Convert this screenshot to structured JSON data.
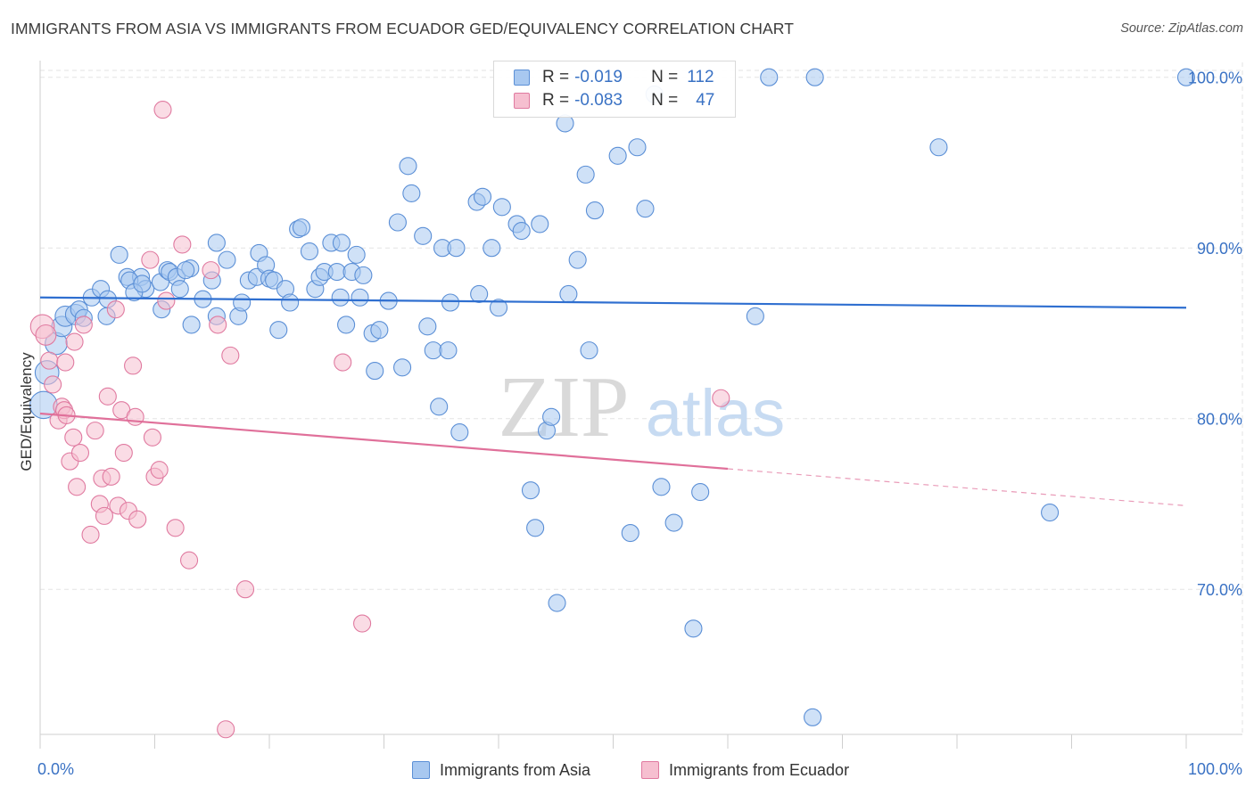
{
  "title": "IMMIGRANTS FROM ASIA VS IMMIGRANTS FROM ECUADOR GED/EQUIVALENCY CORRELATION CHART",
  "source": "Source: ZipAtlas.com",
  "watermark": {
    "zip": "ZIP",
    "atlas": "atlas"
  },
  "legend": {
    "rows": [
      {
        "r_label": "R =",
        "r_value": "-0.019",
        "n_label": "N =",
        "n_value": "112",
        "color": "#a8c8f0",
        "stroke": "#5b8fd6"
      },
      {
        "r_label": "R =",
        "r_value": "-0.083",
        "n_label": "N =",
        "n_value": "47",
        "color": "#f6bfd0",
        "stroke": "#e07aa0"
      }
    ]
  },
  "chart_data": {
    "type": "scatter",
    "xlabel": "",
    "ylabel": "GED/Equivalency",
    "xlim": [
      0,
      100
    ],
    "ylim": [
      61.5,
      101.5
    ],
    "x_tick_labels": [
      {
        "value": 0,
        "label": "0.0%"
      },
      {
        "value": 100,
        "label": "100.0%"
      }
    ],
    "y_tick_labels": [
      {
        "value": 70,
        "label": "70.0%"
      },
      {
        "value": 80,
        "label": "80.0%"
      },
      {
        "value": 90,
        "label": "90.0%"
      },
      {
        "value": 100,
        "label": "100.0%"
      }
    ],
    "grid": true,
    "legend_position": "top-center",
    "series": [
      {
        "name": "Immigrants from Asia",
        "color": "#a8c8f0",
        "stroke": "#5b8fd6",
        "trend_color": "#2f6fd0",
        "trend": {
          "x0": 0,
          "y0": 87.1,
          "x1": 100,
          "y1": 86.5,
          "solid_until": 100
        },
        "points": [
          [
            0.3,
            80.8,
            16
          ],
          [
            0.6,
            82.7,
            14
          ],
          [
            1.4,
            84.4,
            13
          ],
          [
            1.9,
            85.4,
            12
          ],
          [
            2.2,
            86.0,
            12
          ],
          [
            3.1,
            86.1,
            12
          ],
          [
            3.4,
            86.4,
            10
          ],
          [
            4.5,
            87.1,
            10
          ],
          [
            5.3,
            87.6,
            10
          ],
          [
            5.8,
            86.0,
            10
          ],
          [
            6.9,
            89.6,
            10
          ],
          [
            7.6,
            88.3,
            10
          ],
          [
            8.8,
            88.3,
            10
          ],
          [
            9.2,
            87.6,
            10
          ],
          [
            7.8,
            88.1,
            10
          ],
          [
            8.2,
            87.4,
            10
          ],
          [
            10.5,
            88.0,
            10
          ],
          [
            11.1,
            88.7,
            10
          ],
          [
            10.6,
            86.4,
            10
          ],
          [
            11.3,
            88.6,
            10
          ],
          [
            11.9,
            88.3,
            10
          ],
          [
            12.2,
            87.6,
            10
          ],
          [
            13.1,
            88.8,
            10
          ],
          [
            12.7,
            88.7,
            10
          ],
          [
            14.2,
            87.0,
            10
          ],
          [
            15.0,
            88.1,
            10
          ],
          [
            15.4,
            90.3,
            10
          ],
          [
            16.3,
            89.3,
            10
          ],
          [
            17.3,
            86.0,
            10
          ],
          [
            17.6,
            86.8,
            10
          ],
          [
            18.2,
            88.1,
            10
          ],
          [
            18.9,
            88.3,
            10
          ],
          [
            19.1,
            89.7,
            10
          ],
          [
            19.7,
            89.0,
            10
          ],
          [
            20.0,
            88.2,
            10
          ],
          [
            20.4,
            88.1,
            10
          ],
          [
            21.4,
            87.6,
            10
          ],
          [
            21.8,
            86.8,
            10
          ],
          [
            22.5,
            91.1,
            10
          ],
          [
            22.8,
            91.2,
            10
          ],
          [
            23.5,
            89.8,
            10
          ],
          [
            24.0,
            87.6,
            10
          ],
          [
            24.4,
            88.3,
            10
          ],
          [
            24.8,
            88.6,
            10
          ],
          [
            25.4,
            90.3,
            10
          ],
          [
            25.9,
            88.6,
            10
          ],
          [
            26.2,
            87.1,
            10
          ],
          [
            27.2,
            88.6,
            10
          ],
          [
            27.6,
            89.6,
            10
          ],
          [
            28.2,
            88.4,
            10
          ],
          [
            27.9,
            87.1,
            10
          ],
          [
            29.0,
            85.0,
            10
          ],
          [
            29.6,
            85.2,
            10
          ],
          [
            30.4,
            86.9,
            10
          ],
          [
            31.2,
            91.5,
            10
          ],
          [
            31.6,
            83.0,
            10
          ],
          [
            32.1,
            94.8,
            10
          ],
          [
            32.4,
            93.2,
            10
          ],
          [
            33.4,
            90.7,
            10
          ],
          [
            33.8,
            85.4,
            10
          ],
          [
            34.3,
            84.0,
            10
          ],
          [
            34.8,
            80.7,
            10
          ],
          [
            35.1,
            90.0,
            10
          ],
          [
            35.6,
            84.0,
            10
          ],
          [
            36.3,
            90.0,
            10
          ],
          [
            36.6,
            79.2,
            10
          ],
          [
            38.1,
            92.7,
            10
          ],
          [
            38.6,
            93.0,
            10
          ],
          [
            38.3,
            87.3,
            10
          ],
          [
            39.4,
            90.0,
            10
          ],
          [
            40.3,
            92.4,
            10
          ],
          [
            40.0,
            86.5,
            10
          ],
          [
            41.6,
            91.4,
            10
          ],
          [
            42.0,
            91.0,
            10
          ],
          [
            42.8,
            75.8,
            10
          ],
          [
            43.2,
            73.6,
            10
          ],
          [
            43.6,
            91.4,
            10
          ],
          [
            44.2,
            79.3,
            10
          ],
          [
            44.6,
            80.1,
            10
          ],
          [
            45.1,
            69.2,
            10
          ],
          [
            45.8,
            97.3,
            10
          ],
          [
            46.1,
            87.3,
            10
          ],
          [
            46.9,
            89.3,
            10
          ],
          [
            47.6,
            94.3,
            10
          ],
          [
            47.9,
            84.0,
            10
          ],
          [
            48.4,
            92.2,
            10
          ],
          [
            50.4,
            95.4,
            10
          ],
          [
            51.5,
            73.3,
            10
          ],
          [
            52.1,
            95.9,
            10
          ],
          [
            52.8,
            92.3,
            10
          ],
          [
            53.6,
            99.0,
            10
          ],
          [
            54.2,
            76.0,
            10
          ],
          [
            55.3,
            73.9,
            10
          ],
          [
            57.0,
            67.7,
            10
          ],
          [
            57.6,
            75.7,
            10
          ],
          [
            62.4,
            86.0,
            10
          ],
          [
            63.6,
            100.0,
            10
          ],
          [
            67.6,
            100.0,
            10
          ],
          [
            67.4,
            62.5,
            10
          ],
          [
            78.4,
            95.9,
            10
          ],
          [
            88.1,
            74.5,
            10
          ],
          [
            100.0,
            100.0,
            10
          ],
          [
            3.8,
            85.9,
            10
          ],
          [
            5.9,
            87.0,
            10
          ],
          [
            13.2,
            85.5,
            10
          ],
          [
            15.4,
            86.0,
            10
          ],
          [
            20.8,
            85.2,
            10
          ],
          [
            35.8,
            86.8,
            10
          ],
          [
            26.7,
            85.5,
            10
          ],
          [
            29.2,
            82.8,
            10
          ],
          [
            26.3,
            90.3,
            10
          ],
          [
            8.9,
            87.9,
            10
          ]
        ]
      },
      {
        "name": "Immigrants from Ecuador",
        "color": "#f6bfd0",
        "stroke": "#e07aa0",
        "trend_color": "#e0709a",
        "trend": {
          "x0": 0,
          "y0": 80.3,
          "x1": 100,
          "y1": 74.9,
          "solid_until": 60
        },
        "points": [
          [
            0.2,
            85.4,
            14
          ],
          [
            0.5,
            84.9,
            12
          ],
          [
            0.8,
            83.4,
            10
          ],
          [
            1.1,
            82.0,
            10
          ],
          [
            1.6,
            79.9,
            10
          ],
          [
            1.9,
            80.7,
            10
          ],
          [
            2.1,
            80.5,
            10
          ],
          [
            2.2,
            83.3,
            10
          ],
          [
            2.6,
            77.5,
            10
          ],
          [
            2.9,
            78.9,
            10
          ],
          [
            3.2,
            76.0,
            10
          ],
          [
            3.5,
            78.0,
            10
          ],
          [
            3.8,
            85.5,
            10
          ],
          [
            4.4,
            73.2,
            10
          ],
          [
            4.8,
            79.3,
            10
          ],
          [
            5.2,
            75.0,
            10
          ],
          [
            5.4,
            76.5,
            10
          ],
          [
            5.6,
            74.3,
            10
          ],
          [
            5.9,
            81.3,
            10
          ],
          [
            6.2,
            76.6,
            10
          ],
          [
            6.6,
            86.4,
            10
          ],
          [
            6.8,
            74.9,
            10
          ],
          [
            7.1,
            80.5,
            10
          ],
          [
            7.3,
            78.0,
            10
          ],
          [
            7.7,
            74.6,
            10
          ],
          [
            8.1,
            83.1,
            10
          ],
          [
            8.3,
            80.1,
            10
          ],
          [
            8.5,
            74.1,
            10
          ],
          [
            9.6,
            89.3,
            10
          ],
          [
            9.8,
            78.9,
            10
          ],
          [
            10.0,
            76.6,
            10
          ],
          [
            10.4,
            77.0,
            10
          ],
          [
            10.7,
            98.1,
            10
          ],
          [
            11.0,
            86.9,
            10
          ],
          [
            11.8,
            73.6,
            10
          ],
          [
            12.4,
            90.2,
            10
          ],
          [
            13.0,
            71.7,
            10
          ],
          [
            14.9,
            88.7,
            10
          ],
          [
            15.5,
            85.5,
            10
          ],
          [
            16.2,
            61.8,
            10
          ],
          [
            16.6,
            83.7,
            10
          ],
          [
            17.9,
            70.0,
            10
          ],
          [
            26.4,
            83.3,
            10
          ],
          [
            28.1,
            68.0,
            10
          ],
          [
            59.4,
            81.2,
            10
          ],
          [
            3.0,
            84.5,
            10
          ],
          [
            2.3,
            80.2,
            10
          ]
        ]
      }
    ]
  }
}
